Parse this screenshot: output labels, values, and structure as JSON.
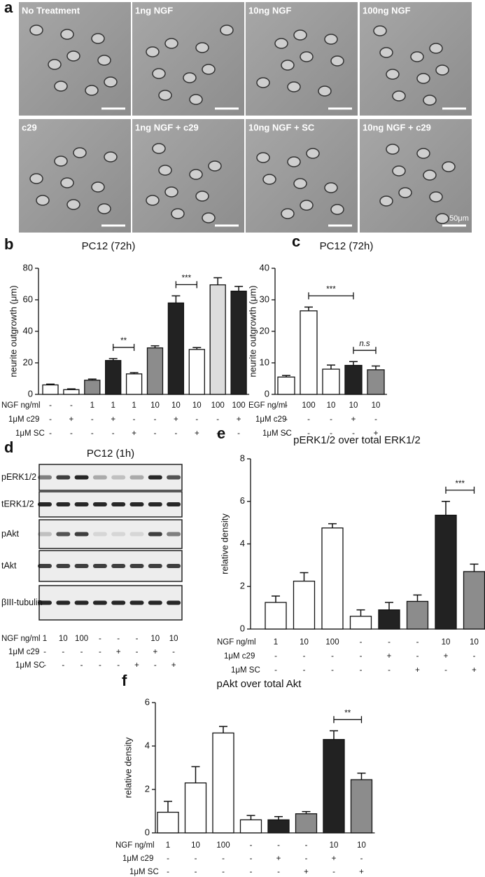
{
  "panel_a": {
    "panel": "a",
    "labels": [
      "No Treatment",
      "1ng NGF",
      "10ng NGF",
      "100ng NGF",
      "c29",
      "1ng NGF + c29",
      "10ng NGF + SC",
      "10ng NGF + c29"
    ],
    "scale_label": "50μm"
  },
  "panel_d": {
    "panel": "d",
    "title": "PC12 (1h)",
    "rows": [
      "pERK1/2",
      "tERK1/2",
      "pAkt",
      "tAkt",
      "βIII-tubulin"
    ],
    "conditions": [
      {
        "label": "NGF ng/ml",
        "values": [
          "1",
          "10",
          "100",
          "-",
          "-",
          "-",
          "10",
          "10"
        ]
      },
      {
        "label": "1μM c29",
        "values": [
          "-",
          "-",
          "-",
          "-",
          "+",
          "-",
          "+",
          "-"
        ]
      },
      {
        "label": "1μM SC",
        "values": [
          "-",
          "-",
          "-",
          "-",
          "-",
          "+",
          "-",
          "+"
        ]
      }
    ]
  },
  "chart_data": [
    {
      "type": "bar",
      "panel": "b",
      "title": "PC12 (72h)",
      "y_label": "neurite outgrowth (μm)",
      "values": [
        6,
        3,
        9,
        21.5,
        13,
        29.5,
        58,
        28.5,
        69.5,
        65.5
      ],
      "errors": [
        0.5,
        0.5,
        0.7,
        1.2,
        0.8,
        1.3,
        4.5,
        1.2,
        4.5,
        3
      ],
      "colors": [
        "#ffffff",
        "#ffffff",
        "#8c8c8c",
        "#222222",
        "#ffffff",
        "#8c8c8c",
        "#222222",
        "#ffffff",
        "#dddddd",
        "#222222"
      ],
      "ylim": [
        0,
        80
      ],
      "yticks": [
        0,
        20,
        40,
        60,
        80
      ],
      "significance": [
        {
          "from": 3,
          "to": 4,
          "label": "**"
        },
        {
          "from": 6,
          "to": 7,
          "label": "***"
        }
      ],
      "conditions": [
        {
          "label": "NGF ng/ml",
          "values": [
            "-",
            "-",
            "1",
            "1",
            "1",
            "10",
            "10",
            "10",
            "100",
            "100"
          ]
        },
        {
          "label": "1μM c29",
          "values": [
            "-",
            "+",
            "-",
            "+",
            "-",
            "-",
            "+",
            "-",
            "-",
            "+"
          ]
        },
        {
          "label": "1μM SC",
          "values": [
            "-",
            "-",
            "-",
            "-",
            "+",
            "-",
            "-",
            "+",
            "-",
            "-"
          ]
        }
      ]
    },
    {
      "type": "bar",
      "panel": "c",
      "title": "PC12 (72h)",
      "y_label": "neurite outgrowth (μm)",
      "values": [
        5.5,
        26.5,
        8,
        9.2,
        7.8
      ],
      "errors": [
        0.5,
        1.2,
        1.3,
        1.2,
        1.2
      ],
      "colors": [
        "#ffffff",
        "#ffffff",
        "#ffffff",
        "#222222",
        "#8c8c8c"
      ],
      "ylim": [
        0,
        40
      ],
      "yticks": [
        0,
        10,
        20,
        30,
        40
      ],
      "significance": [
        {
          "from": 1,
          "to": 3,
          "label": "***"
        },
        {
          "from": 3,
          "to": 4,
          "label": "n.s"
        }
      ],
      "conditions": [
        {
          "label": "EGF ng/ml",
          "values": [
            "-",
            "100",
            "10",
            "10",
            "10"
          ]
        },
        {
          "label": "1μM c29",
          "values": [
            "-",
            "-",
            "-",
            "+",
            "-"
          ]
        },
        {
          "label": "1μM SC",
          "values": [
            "-",
            "-",
            "-",
            "-",
            "+"
          ]
        }
      ]
    },
    {
      "type": "bar",
      "panel": "e",
      "title": "pERK1/2 over total ERK1/2",
      "y_label": "relative density",
      "values": [
        1.25,
        2.25,
        4.75,
        0.6,
        0.9,
        1.3,
        5.35,
        2.7
      ],
      "errors": [
        0.3,
        0.4,
        0.2,
        0.3,
        0.35,
        0.3,
        0.65,
        0.35
      ],
      "colors": [
        "#ffffff",
        "#ffffff",
        "#ffffff",
        "#ffffff",
        "#222222",
        "#8c8c8c",
        "#222222",
        "#8c8c8c"
      ],
      "ylim": [
        0,
        8
      ],
      "yticks": [
        0,
        2,
        4,
        6,
        8
      ],
      "significance": [
        {
          "from": 6,
          "to": 7,
          "label": "***"
        }
      ],
      "conditions": [
        {
          "label": "NGF ng/ml",
          "values": [
            "1",
            "10",
            "100",
            "-",
            "-",
            "-",
            "10",
            "10"
          ]
        },
        {
          "label": "1μM c29",
          "values": [
            "-",
            "-",
            "-",
            "-",
            "+",
            "-",
            "+",
            "-"
          ]
        },
        {
          "label": "1μM SC",
          "values": [
            "-",
            "-",
            "-",
            "-",
            "-",
            "+",
            "-",
            "+"
          ]
        }
      ]
    },
    {
      "type": "bar",
      "panel": "f",
      "title": "pAkt over total Akt",
      "y_label": "relative density",
      "values": [
        0.95,
        2.3,
        4.6,
        0.6,
        0.6,
        0.88,
        4.3,
        2.45
      ],
      "errors": [
        0.5,
        0.75,
        0.3,
        0.2,
        0.15,
        0.1,
        0.4,
        0.3
      ],
      "colors": [
        "#ffffff",
        "#ffffff",
        "#ffffff",
        "#ffffff",
        "#222222",
        "#8c8c8c",
        "#222222",
        "#8c8c8c"
      ],
      "ylim": [
        0,
        6
      ],
      "yticks": [
        0,
        2,
        4,
        6
      ],
      "significance": [
        {
          "from": 6,
          "to": 7,
          "label": "**"
        }
      ],
      "conditions": [
        {
          "label": "NGF ng/ml",
          "values": [
            "1",
            "10",
            "100",
            "-",
            "-",
            "-",
            "10",
            "10"
          ]
        },
        {
          "label": "1μM c29",
          "values": [
            "-",
            "-",
            "-",
            "-",
            "+",
            "-",
            "+",
            "-"
          ]
        },
        {
          "label": "1μM SC",
          "values": [
            "-",
            "-",
            "-",
            "-",
            "-",
            "+",
            "-",
            "+"
          ]
        }
      ]
    }
  ]
}
